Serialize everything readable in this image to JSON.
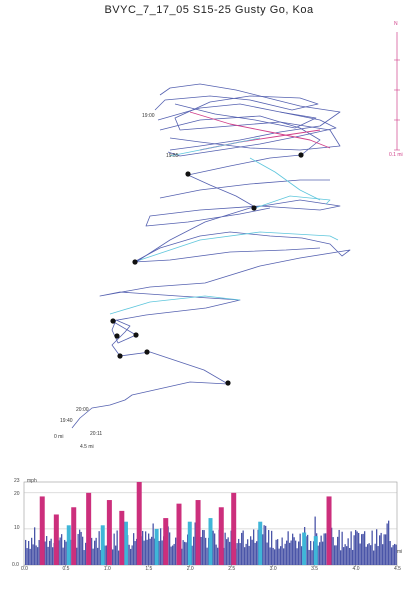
{
  "title": "BVYC_7_17_05   S15-25  Gusty Go, Koa",
  "compass": {
    "north_label": "N",
    "scale_label": "0.1 mi"
  },
  "map_labels": {
    "time_top": "19:00",
    "time_mid": "19:55",
    "time_start_a": "20:00",
    "time_start_b": "19:40",
    "time_start_c": "20:11",
    "dist_start": "0 mi",
    "dist_end": "4.5 mi"
  },
  "colors": {
    "track_main": "#5561b0",
    "track_accent": "#d0408a",
    "track_light": "#5ec6dc",
    "marker": "#111111",
    "bar_blue": "#4a55a8",
    "bar_pink": "#cc2f7c",
    "bar_cyan": "#3fb6d8"
  },
  "chart_data": {
    "type": "bar",
    "title": "",
    "xlabel": "mi",
    "ylabel": "mph",
    "ylim": [
      0,
      23
    ],
    "xlim": [
      0,
      4.5
    ],
    "yticks": [
      "0.0",
      "10",
      "20",
      "23"
    ],
    "xticks": [
      "0.0",
      "0.5",
      "1.0",
      "1.5",
      "2.0",
      "2.5",
      "3.0",
      "3.5",
      "4.0",
      "4.5"
    ],
    "highlights_pink": [
      {
        "x": 0.22,
        "y": 19
      },
      {
        "x": 0.39,
        "y": 14
      },
      {
        "x": 0.6,
        "y": 16
      },
      {
        "x": 0.78,
        "y": 20
      },
      {
        "x": 1.03,
        "y": 18
      },
      {
        "x": 1.18,
        "y": 15
      },
      {
        "x": 1.39,
        "y": 23
      },
      {
        "x": 1.71,
        "y": 13
      },
      {
        "x": 1.87,
        "y": 17
      },
      {
        "x": 2.1,
        "y": 18
      },
      {
        "x": 2.38,
        "y": 16
      },
      {
        "x": 2.53,
        "y": 20
      },
      {
        "x": 3.68,
        "y": 19
      }
    ],
    "highlights_cyan": [
      {
        "x": 0.54,
        "y": 11
      },
      {
        "x": 0.95,
        "y": 11
      },
      {
        "x": 1.23,
        "y": 12
      },
      {
        "x": 1.6,
        "y": 10
      },
      {
        "x": 2.0,
        "y": 12
      },
      {
        "x": 2.25,
        "y": 13
      },
      {
        "x": 2.85,
        "y": 12
      },
      {
        "x": 3.38,
        "y": 9
      },
      {
        "x": 3.52,
        "y": 8
      }
    ]
  }
}
